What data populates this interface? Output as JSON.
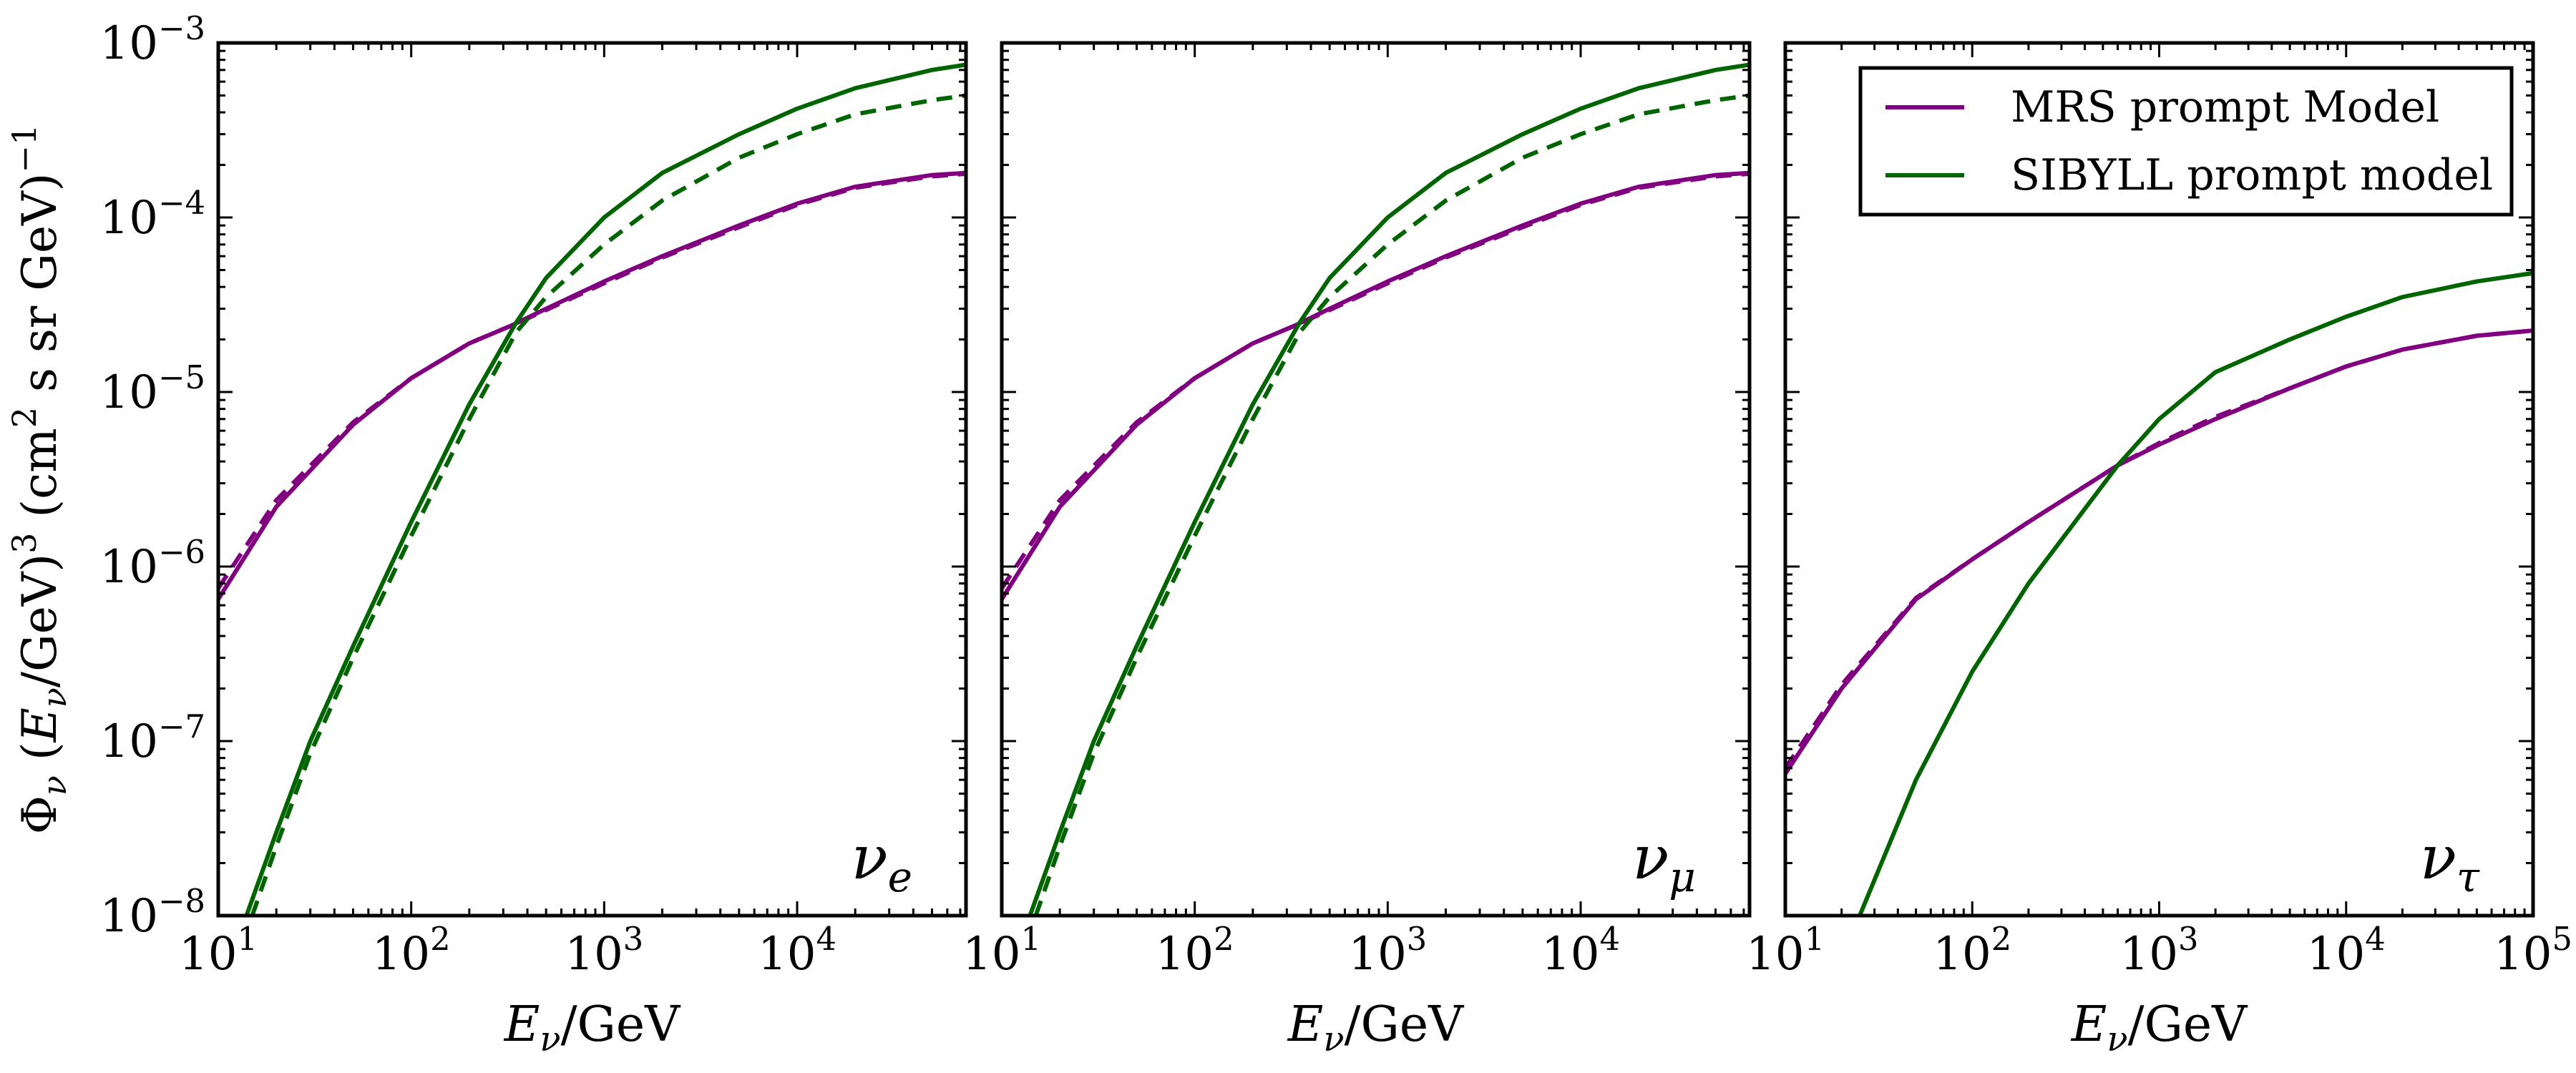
{
  "chart_data": {
    "type": "line",
    "colors": {
      "MRS": "#800080",
      "SIBYLL": "#006400",
      "axis": "#000000"
    },
    "shared_ylabel": "Φ_ν (E_ν/GeV)^3 (cm^2 s sr GeV)^-1",
    "ylabel_parts": [
      "Φ",
      "ν",
      " (",
      "E",
      "ν",
      "/GeV)",
      "3",
      " (cm",
      "2",
      " s sr GeV)",
      "−1"
    ],
    "yscale": "log",
    "xscale": "log",
    "ylim": [
      1e-08,
      0.001
    ],
    "ytick_labels": [
      {
        "value": 1e-08,
        "base": "10",
        "exp": "−8"
      },
      {
        "value": 1e-07,
        "base": "10",
        "exp": "−7"
      },
      {
        "value": 1e-06,
        "base": "10",
        "exp": "−6"
      },
      {
        "value": 1e-05,
        "base": "10",
        "exp": "−5"
      },
      {
        "value": 0.0001,
        "base": "10",
        "exp": "−4"
      },
      {
        "value": 0.001,
        "base": "10",
        "exp": "−3"
      }
    ],
    "legend": {
      "placement": "top-right of third panel",
      "entries": [
        {
          "label": "MRS prompt Model",
          "color": "#800080"
        },
        {
          "label": "SIBYLL prompt model",
          "color": "#006400"
        }
      ]
    },
    "panels": [
      {
        "name": "nu-e",
        "label_base": "ν",
        "label_sub": "e",
        "xlim": [
          10,
          75000
        ],
        "xlabel_parts": [
          "E",
          "ν",
          "/GeV"
        ],
        "xtick_labels": [
          {
            "value": 10,
            "base": "10",
            "exp": "1"
          },
          {
            "value": 100,
            "base": "10",
            "exp": "2"
          },
          {
            "value": 1000,
            "base": "10",
            "exp": "3"
          },
          {
            "value": 10000,
            "base": "10",
            "exp": "4"
          }
        ],
        "series": [
          {
            "name": "MRS solid",
            "model": "MRS",
            "style": "solid",
            "x": [
              10,
              20,
              50,
              100,
              200,
              330,
              500,
              1000,
              2000,
              5000,
              10000,
              20000,
              50000,
              75000
            ],
            "y": [
              6.5e-07,
              2.2e-06,
              6.5e-06,
              1.2e-05,
              1.9e-05,
              2.4e-05,
              3e-05,
              4.3e-05,
              6e-05,
              9e-05,
              0.00012,
              0.00015,
              0.000175,
              0.00018
            ]
          },
          {
            "name": "MRS dashed",
            "model": "MRS",
            "style": "dashed",
            "x": [
              10,
              20,
              50,
              100,
              200,
              330,
              500,
              1000,
              2000,
              5000,
              10000,
              20000,
              50000,
              75000
            ],
            "y": [
              7.5e-07,
              2.4e-06,
              6.7e-06,
              1.2e-05,
              1.9e-05,
              2.4e-05,
              2.95e-05,
              4.2e-05,
              5.9e-05,
              8.8e-05,
              0.000118,
              0.000148,
              0.000172,
              0.000178
            ]
          },
          {
            "name": "SIBYLL solid",
            "model": "SIBYLL",
            "style": "solid",
            "x": [
              14,
              20,
              30,
              50,
              100,
              200,
              350,
              500,
              1000,
              2000,
              5000,
              10000,
              20000,
              50000,
              75000
            ],
            "y": [
              1e-08,
              3e-08,
              1e-07,
              3.5e-07,
              1.8e-06,
              8.5e-06,
              2.5e-05,
              4.5e-05,
              0.0001,
              0.00018,
              0.0003,
              0.00042,
              0.00055,
              0.0007,
              0.00075
            ]
          },
          {
            "name": "SIBYLL dashed",
            "model": "SIBYLL",
            "style": "dashed",
            "x": [
              15,
              20,
              30,
              50,
              100,
              200,
              350,
              500,
              1000,
              2000,
              5000,
              10000,
              20000,
              50000,
              75000
            ],
            "y": [
              1e-08,
              2.5e-08,
              8.5e-08,
              3e-07,
              1.5e-06,
              7e-06,
              2.2e-05,
              3.5e-05,
              7e-05,
              0.000125,
              0.00022,
              0.0003,
              0.00039,
              0.00047,
              0.0005
            ]
          }
        ]
      },
      {
        "name": "nu-mu",
        "label_base": "ν",
        "label_sub": "μ",
        "xlim": [
          10,
          75000
        ],
        "xlabel_parts": [
          "E",
          "ν",
          "/GeV"
        ],
        "xtick_labels": [
          {
            "value": 10,
            "base": "10",
            "exp": "1"
          },
          {
            "value": 100,
            "base": "10",
            "exp": "2"
          },
          {
            "value": 1000,
            "base": "10",
            "exp": "3"
          },
          {
            "value": 10000,
            "base": "10",
            "exp": "4"
          }
        ],
        "series": [
          {
            "name": "MRS solid",
            "model": "MRS",
            "style": "solid",
            "x": [
              10,
              20,
              50,
              100,
              200,
              330,
              500,
              1000,
              2000,
              5000,
              10000,
              20000,
              50000,
              75000
            ],
            "y": [
              6.5e-07,
              2.2e-06,
              6.5e-06,
              1.2e-05,
              1.9e-05,
              2.4e-05,
              3e-05,
              4.3e-05,
              6e-05,
              9e-05,
              0.00012,
              0.00015,
              0.000175,
              0.00018
            ]
          },
          {
            "name": "MRS dashed",
            "model": "MRS",
            "style": "dashed",
            "x": [
              10,
              20,
              50,
              100,
              200,
              330,
              500,
              1000,
              2000,
              5000,
              10000,
              20000,
              50000,
              75000
            ],
            "y": [
              7.5e-07,
              2.4e-06,
              6.7e-06,
              1.2e-05,
              1.9e-05,
              2.4e-05,
              2.95e-05,
              4.2e-05,
              5.9e-05,
              8.8e-05,
              0.000118,
              0.000148,
              0.000172,
              0.000178
            ]
          },
          {
            "name": "SIBYLL solid",
            "model": "SIBYLL",
            "style": "solid",
            "x": [
              14,
              20,
              30,
              50,
              100,
              200,
              350,
              500,
              1000,
              2000,
              5000,
              10000,
              20000,
              50000,
              75000
            ],
            "y": [
              1e-08,
              3e-08,
              1e-07,
              3.5e-07,
              1.8e-06,
              8.5e-06,
              2.5e-05,
              4.5e-05,
              0.0001,
              0.00018,
              0.0003,
              0.00042,
              0.00055,
              0.0007,
              0.00075
            ]
          },
          {
            "name": "SIBYLL dashed",
            "model": "SIBYLL",
            "style": "dashed",
            "x": [
              15,
              20,
              30,
              50,
              100,
              200,
              350,
              500,
              1000,
              2000,
              5000,
              10000,
              20000,
              50000,
              75000
            ],
            "y": [
              1e-08,
              2.5e-08,
              8.5e-08,
              3e-07,
              1.5e-06,
              7e-06,
              2.2e-05,
              3.5e-05,
              7e-05,
              0.000125,
              0.00022,
              0.0003,
              0.00039,
              0.00047,
              0.0005
            ]
          }
        ]
      },
      {
        "name": "nu-tau",
        "label_base": "ν",
        "label_sub": "τ",
        "xlim": [
          10,
          100000
        ],
        "xlabel_parts": [
          "E",
          "ν",
          "/GeV"
        ],
        "xtick_labels": [
          {
            "value": 10,
            "base": "10",
            "exp": "1"
          },
          {
            "value": 100,
            "base": "10",
            "exp": "2"
          },
          {
            "value": 1000,
            "base": "10",
            "exp": "3"
          },
          {
            "value": 10000,
            "base": "10",
            "exp": "4"
          },
          {
            "value": 100000,
            "base": "10",
            "exp": "5"
          }
        ],
        "series": [
          {
            "name": "MRS solid",
            "model": "MRS",
            "style": "solid",
            "x": [
              10,
              20,
              50,
              100,
              200,
              600,
              1000,
              2000,
              5000,
              10000,
              20000,
              50000,
              100000
            ],
            "y": [
              6.5e-08,
              2e-07,
              6.5e-07,
              1.1e-06,
              1.8e-06,
              3.8e-06,
              5e-06,
              7e-06,
              1.05e-05,
              1.4e-05,
              1.75e-05,
              2.1e-05,
              2.25e-05
            ]
          },
          {
            "name": "MRS dashed",
            "model": "MRS",
            "style": "dashed",
            "x": [
              10,
              20,
              50,
              100,
              200,
              600,
              1000,
              2000,
              5000,
              10000,
              20000,
              50000,
              100000
            ],
            "y": [
              7e-08,
              2.1e-07,
              6.6e-07,
              1.1e-06,
              1.8e-06,
              3.8e-06,
              5.1e-06,
              7.2e-06,
              1.05e-05,
              1.4e-05,
              1.75e-05,
              2.1e-05,
              2.25e-05
            ]
          },
          {
            "name": "SIBYLL solid",
            "model": "SIBYLL",
            "style": "solid",
            "x": [
              25,
              50,
              100,
              200,
              600,
              1000,
              2000,
              5000,
              10000,
              20000,
              50000,
              100000
            ],
            "y": [
              1e-08,
              6e-08,
              2.5e-07,
              8e-07,
              3.8e-06,
              7e-06,
              1.3e-05,
              2e-05,
              2.7e-05,
              3.5e-05,
              4.3e-05,
              4.8e-05
            ]
          }
        ]
      }
    ]
  }
}
